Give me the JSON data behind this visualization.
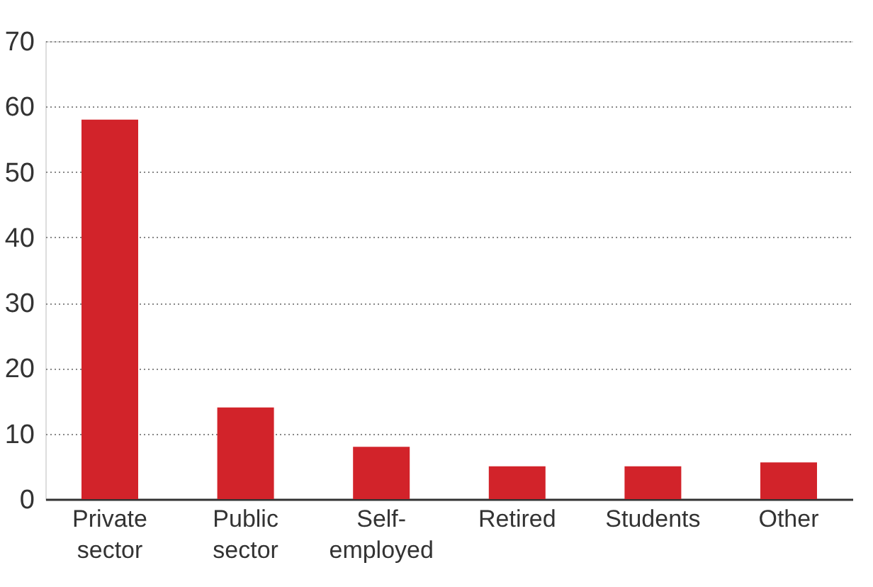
{
  "chart_data": {
    "type": "bar",
    "categories": [
      "Private sector",
      "Public sector",
      "Self-employed",
      "Retired",
      "Students",
      "Other"
    ],
    "values": [
      58,
      14,
      8,
      5,
      5,
      5.6
    ],
    "color": "#d2232a",
    "ylim": [
      0,
      70
    ],
    "yticks": [
      0,
      10,
      20,
      30,
      40,
      50,
      60,
      70
    ],
    "grid": "y"
  }
}
